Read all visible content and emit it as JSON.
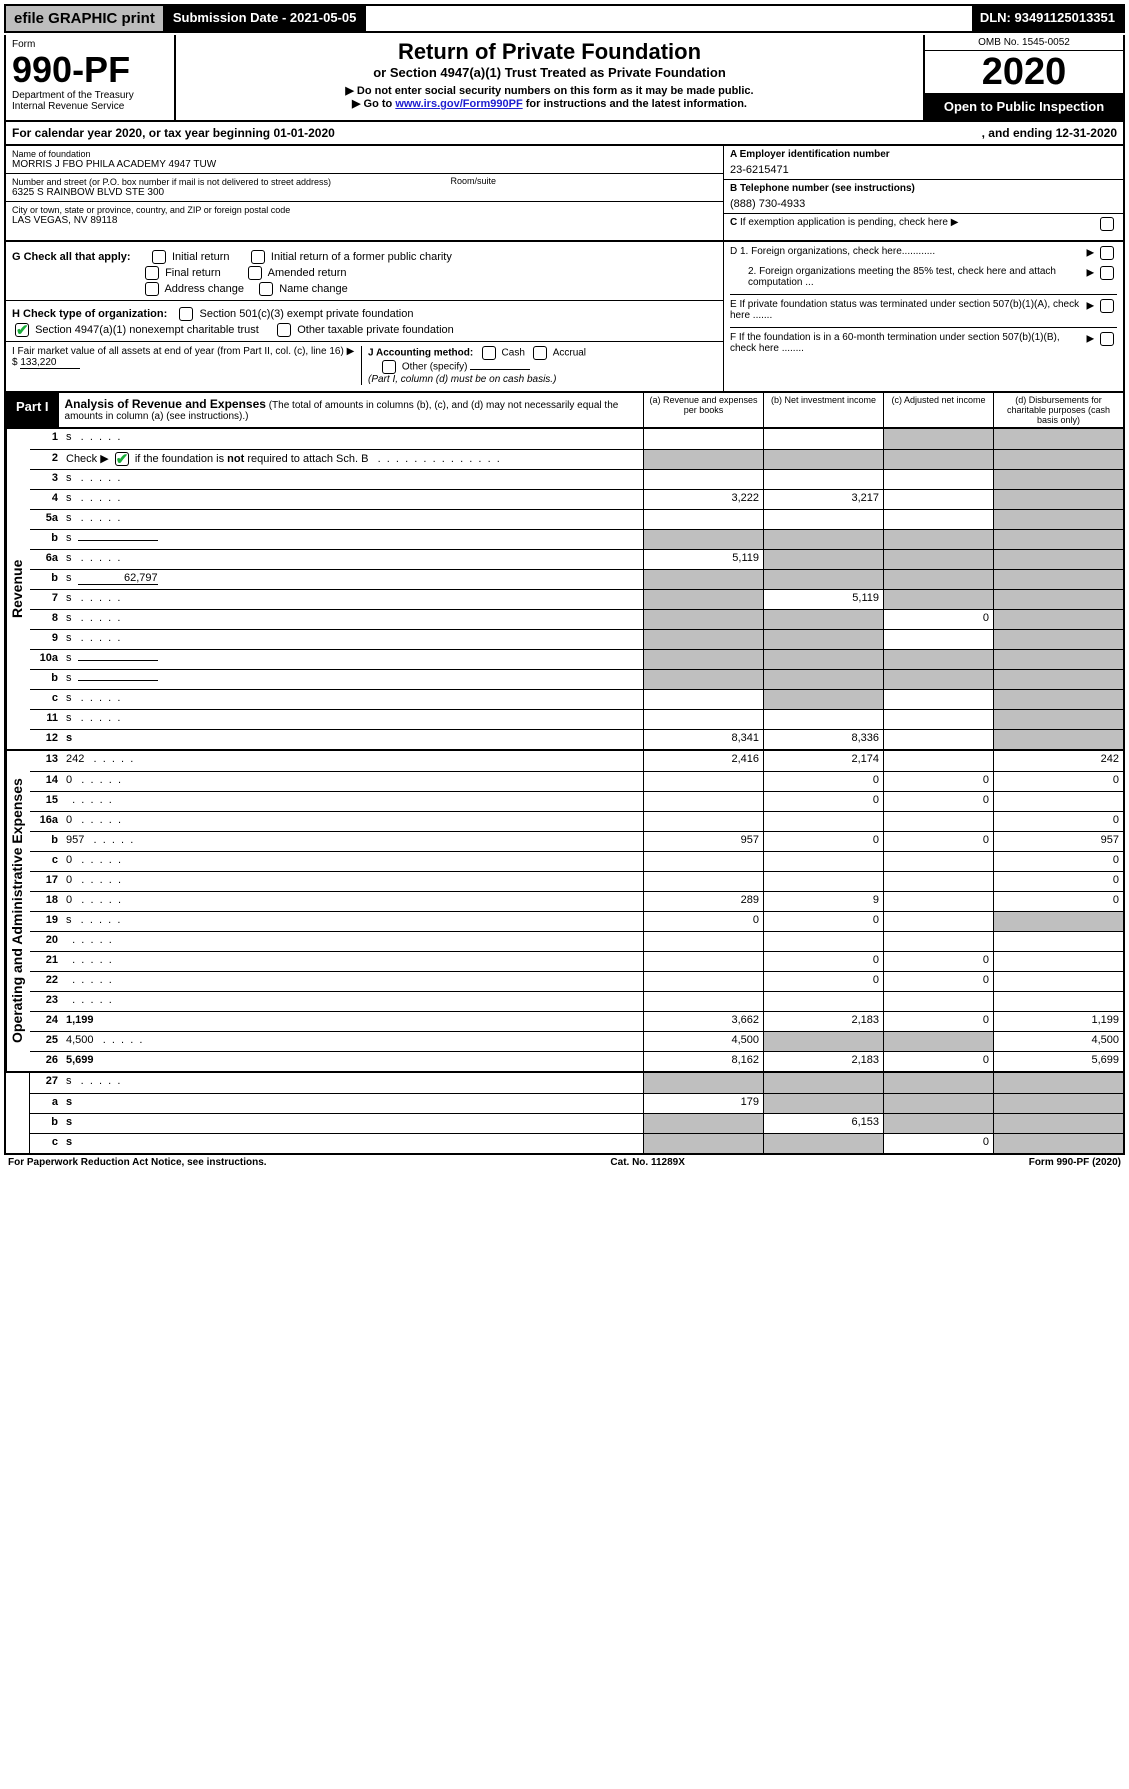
{
  "topbar": {
    "efile": "efile GRAPHIC print",
    "submission": "Submission Date - 2021-05-05",
    "dln": "DLN: 93491125013351"
  },
  "header": {
    "form_label": "Form",
    "form_num": "990-PF",
    "dept": "Department of the Treasury\nInternal Revenue Service",
    "title1": "Return of Private Foundation",
    "title2": "or Section 4947(a)(1) Trust Treated as Private Foundation",
    "instr1": "▶ Do not enter social security numbers on this form as it may be made public.",
    "instr2_pre": "▶ Go to ",
    "instr2_link": "www.irs.gov/Form990PF",
    "instr2_post": " for instructions and the latest information.",
    "omb": "OMB No. 1545-0052",
    "year": "2020",
    "open": "Open to Public Inspection"
  },
  "calyear": {
    "left": "For calendar year 2020, or tax year beginning 01-01-2020",
    "right": ", and ending 12-31-2020"
  },
  "id": {
    "name_label": "Name of foundation",
    "name": "MORRIS J FBO PHILA ACADEMY 4947 TUW",
    "addr_label": "Number and street (or P.O. box number if mail is not delivered to street address)",
    "addr": "6325 S RAINBOW BLVD STE 300",
    "room_label": "Room/suite",
    "city_label": "City or town, state or province, country, and ZIP or foreign postal code",
    "city": "LAS VEGAS, NV  89118",
    "ein_label": "A Employer identification number",
    "ein": "23-6215471",
    "tel_label": "B Telephone number (see instructions)",
    "tel": "(888) 730-4933",
    "c_label": "C If exemption application is pending, check here",
    "d1": "D 1. Foreign organizations, check here............",
    "d2": "2. Foreign organizations meeting the 85% test, check here and attach computation ...",
    "e": "E  If private foundation status was terminated under section 507(b)(1)(A), check here .......",
    "f": "F  If the foundation is in a 60-month termination under section 507(b)(1)(B), check here ........"
  },
  "checks": {
    "g_label": "G Check all that apply:",
    "g_items": [
      "Initial return",
      "Initial return of a former public charity",
      "Final return",
      "Amended return",
      "Address change",
      "Name change"
    ],
    "h_label": "H Check type of organization:",
    "h1": "Section 501(c)(3) exempt private foundation",
    "h2": "Section 4947(a)(1) nonexempt charitable trust",
    "h3": "Other taxable private foundation",
    "i_label": "I Fair market value of all assets at end of year (from Part II, col. (c), line 16) ▶ $",
    "i_val": "133,220",
    "j_label": "J Accounting method:",
    "j1": "Cash",
    "j2": "Accrual",
    "j3": "Other (specify)",
    "j_note": "(Part I, column (d) must be on cash basis.)"
  },
  "part1": {
    "tag": "Part I",
    "title": "Analysis of Revenue and Expenses",
    "note": " (The total of amounts in columns (b), (c), and (d) may not necessarily equal the amounts in column (a) (see instructions).)",
    "cols": {
      "a": "(a)   Revenue and expenses per books",
      "b": "(b)   Net investment income",
      "c": "(c)   Adjusted net income",
      "d": "(d)   Disbursements for charitable purposes (cash basis only)"
    }
  },
  "revenue_label": "Revenue",
  "expenses_label": "Operating and Administrative Expenses",
  "rows": [
    {
      "n": "1",
      "d": "s",
      "a": "",
      "b": "",
      "c": "s"
    },
    {
      "n": "2",
      "d": "s",
      "a": "s",
      "b": "s",
      "c": "s",
      "special": "check"
    },
    {
      "n": "3",
      "d": "s",
      "a": "",
      "b": "",
      "c": ""
    },
    {
      "n": "4",
      "d": "s",
      "a": "3,222",
      "b": "3,217",
      "c": ""
    },
    {
      "n": "5a",
      "d": "s",
      "a": "",
      "b": "",
      "c": ""
    },
    {
      "n": "b",
      "d": "s",
      "a": "s",
      "b": "s",
      "c": "s",
      "inline": true
    },
    {
      "n": "6a",
      "d": "s",
      "a": "5,119",
      "b": "s",
      "c": "s"
    },
    {
      "n": "b",
      "d": "s",
      "val": "62,797",
      "a": "s",
      "b": "s",
      "c": "s",
      "inline": true
    },
    {
      "n": "7",
      "d": "s",
      "a": "s",
      "b": "5,119",
      "c": "s"
    },
    {
      "n": "8",
      "d": "s",
      "a": "s",
      "b": "s",
      "c": "0"
    },
    {
      "n": "9",
      "d": "s",
      "a": "s",
      "b": "s",
      "c": ""
    },
    {
      "n": "10a",
      "d": "s",
      "a": "s",
      "b": "s",
      "c": "s",
      "inline": true
    },
    {
      "n": "b",
      "d": "s",
      "a": "s",
      "b": "s",
      "c": "s",
      "inline": true
    },
    {
      "n": "c",
      "d": "s",
      "a": "",
      "b": "s",
      "c": ""
    },
    {
      "n": "11",
      "d": "s",
      "a": "",
      "b": "",
      "c": ""
    },
    {
      "n": "12",
      "d": "s",
      "a": "8,341",
      "b": "8,336",
      "c": "",
      "bold": true
    }
  ],
  "exp_rows": [
    {
      "n": "13",
      "d": "242",
      "a": "2,416",
      "b": "2,174",
      "c": ""
    },
    {
      "n": "14",
      "d": "0",
      "a": "",
      "b": "0",
      "c": "0"
    },
    {
      "n": "15",
      "d": "",
      "a": "",
      "b": "0",
      "c": "0"
    },
    {
      "n": "16a",
      "d": "0",
      "a": "",
      "b": "",
      "c": ""
    },
    {
      "n": "b",
      "d": "957",
      "a": "957",
      "b": "0",
      "c": "0"
    },
    {
      "n": "c",
      "d": "0",
      "a": "",
      "b": "",
      "c": ""
    },
    {
      "n": "17",
      "d": "0",
      "a": "",
      "b": "",
      "c": ""
    },
    {
      "n": "18",
      "d": "0",
      "a": "289",
      "b": "9",
      "c": ""
    },
    {
      "n": "19",
      "d": "s",
      "a": "0",
      "b": "0",
      "c": ""
    },
    {
      "n": "20",
      "d": "",
      "a": "",
      "b": "",
      "c": ""
    },
    {
      "n": "21",
      "d": "",
      "a": "",
      "b": "0",
      "c": "0"
    },
    {
      "n": "22",
      "d": "",
      "a": "",
      "b": "0",
      "c": "0"
    },
    {
      "n": "23",
      "d": "",
      "a": "",
      "b": "",
      "c": ""
    },
    {
      "n": "24",
      "d": "1,199",
      "a": "3,662",
      "b": "2,183",
      "c": "0",
      "bold": true
    },
    {
      "n": "25",
      "d": "4,500",
      "a": "4,500",
      "b": "s",
      "c": "s"
    },
    {
      "n": "26",
      "d": "5,699",
      "a": "8,162",
      "b": "2,183",
      "c": "0",
      "bold": true
    }
  ],
  "final_rows": [
    {
      "n": "27",
      "d": "s",
      "a": "s",
      "b": "s",
      "c": "s"
    },
    {
      "n": "a",
      "d": "s",
      "a": "179",
      "b": "s",
      "c": "s",
      "bold": true
    },
    {
      "n": "b",
      "d": "s",
      "a": "s",
      "b": "6,153",
      "c": "s",
      "bold": true
    },
    {
      "n": "c",
      "d": "s",
      "a": "s",
      "b": "s",
      "c": "0",
      "bold": true
    }
  ],
  "footer": {
    "left": "For Paperwork Reduction Act Notice, see instructions.",
    "mid": "Cat. No. 11289X",
    "right": "Form 990-PF (2020)"
  },
  "colors": {
    "shade": "#bfbfbf",
    "green": "#1aad3a",
    "link": "#2020d0"
  }
}
